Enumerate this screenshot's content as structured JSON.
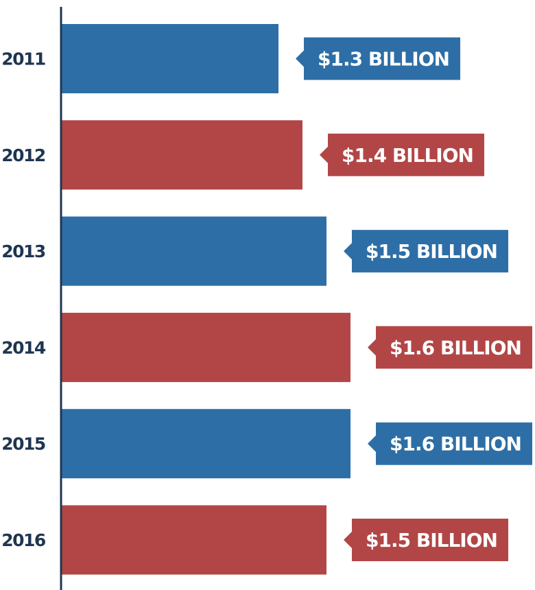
{
  "chart_data": {
    "type": "bar",
    "orientation": "horizontal",
    "title": "",
    "xlabel": "",
    "ylabel": "",
    "categories": [
      "2011",
      "2012",
      "2013",
      "2014",
      "2015",
      "2016"
    ],
    "values": [
      1.3,
      1.4,
      1.5,
      1.6,
      1.6,
      1.5
    ],
    "value_labels": [
      "$1.3 BILLION",
      "$1.4 BILLION",
      "$1.5 BILLION",
      "$1.6 BILLION",
      "$1.6 BILLION",
      "$1.5 BILLION"
    ],
    "unit": "billion USD",
    "grid": false,
    "legend": "none",
    "colors": [
      "#2e6ea6",
      "#b24646",
      "#2e6ea6",
      "#b24646",
      "#2e6ea6",
      "#b24646"
    ],
    "axis_color": "#1f3550"
  }
}
